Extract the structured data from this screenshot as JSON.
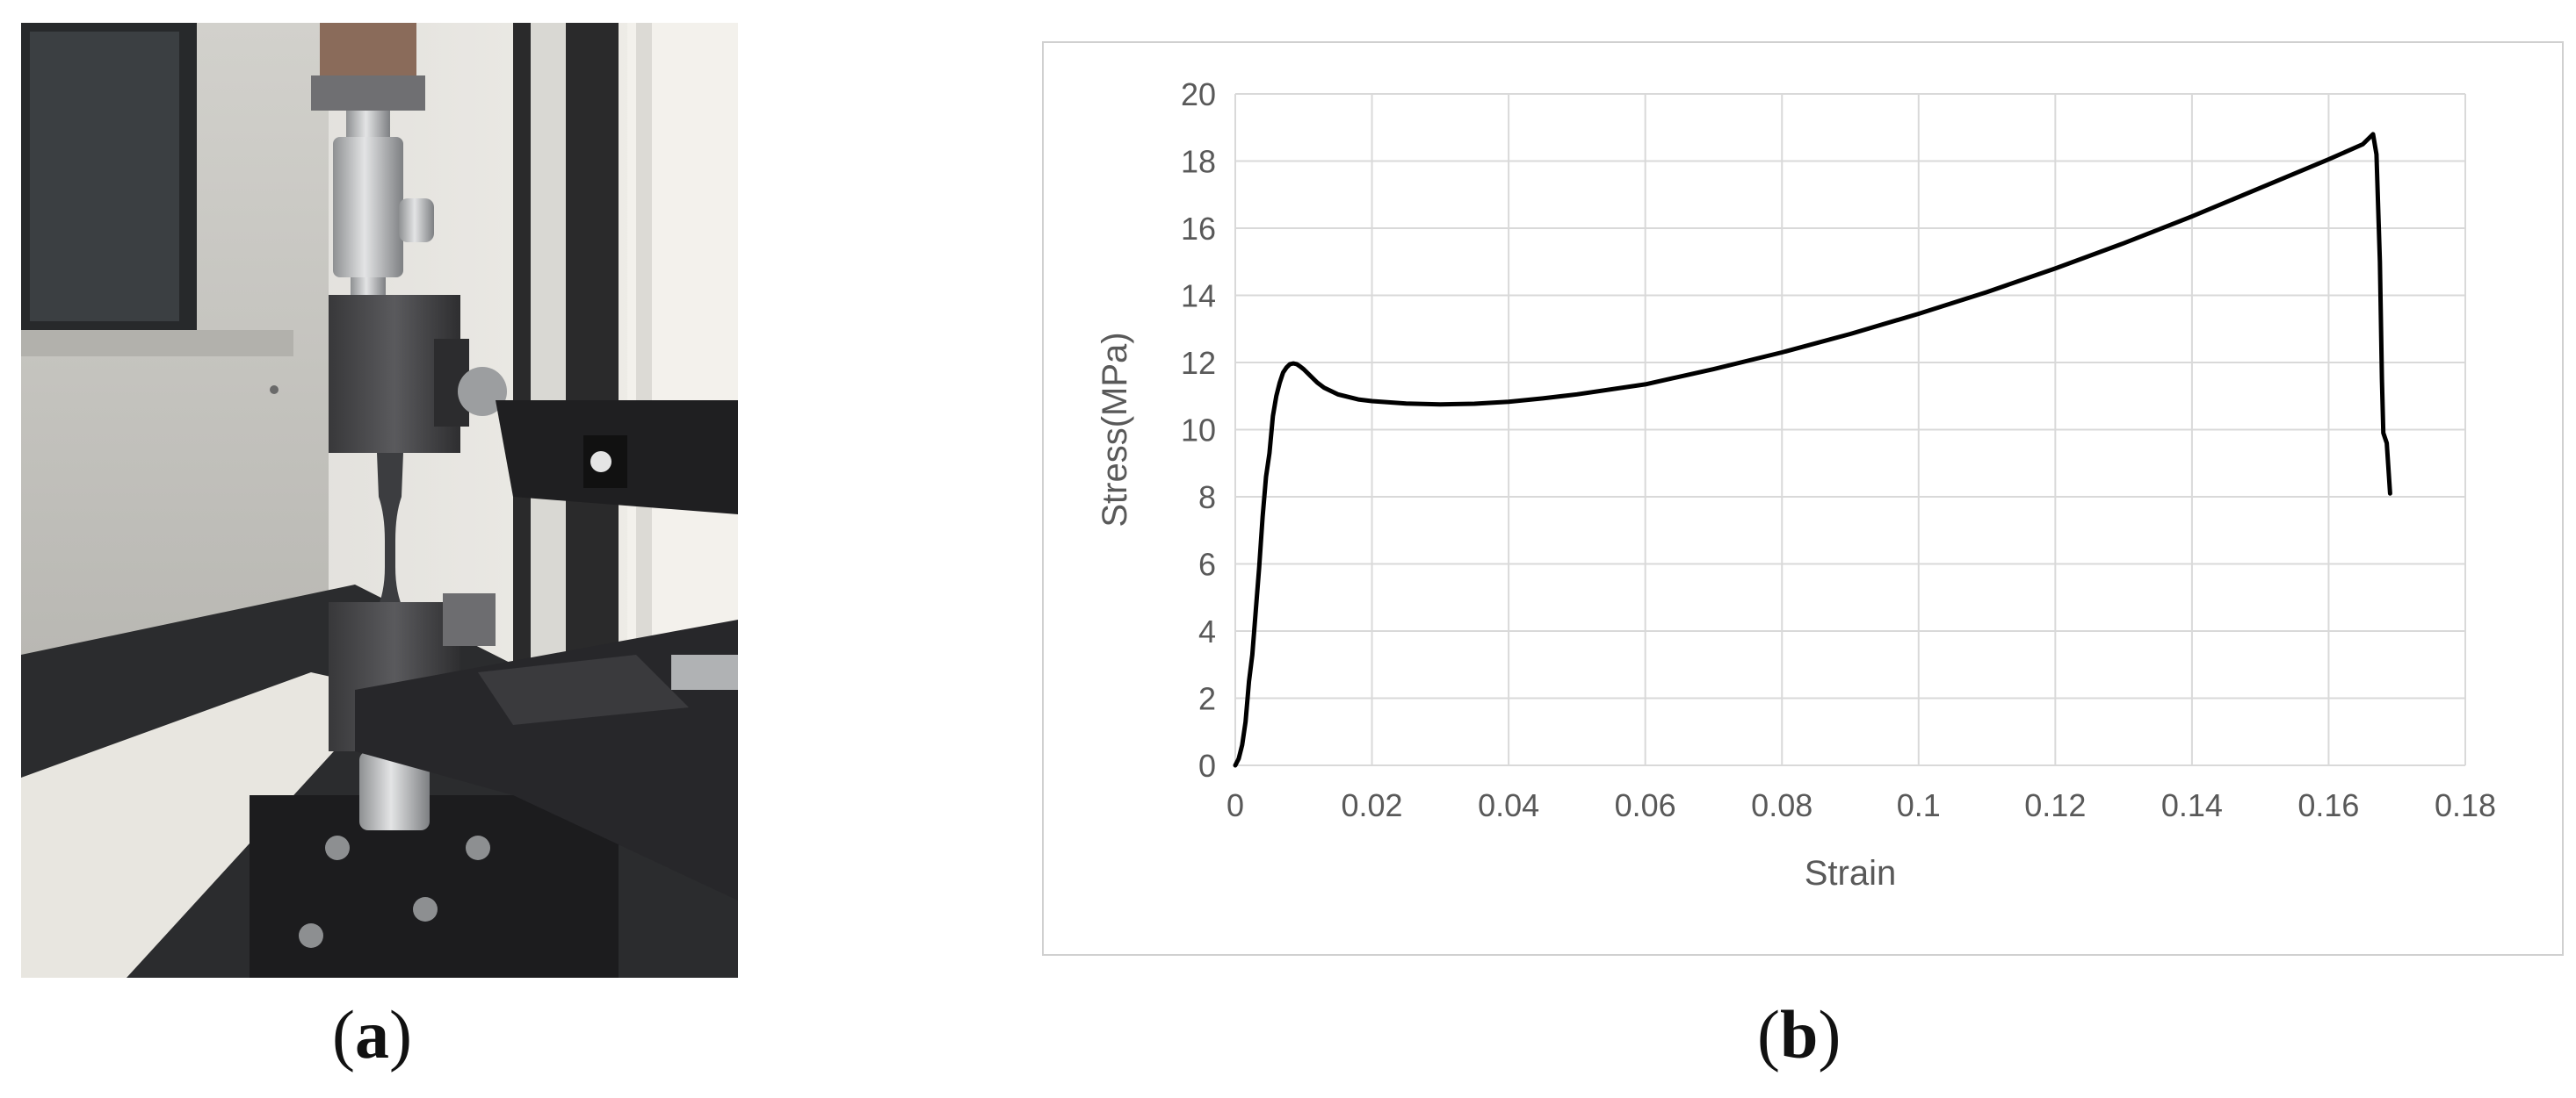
{
  "panels": {
    "a": {
      "label": "a"
    },
    "b": {
      "label": "b"
    }
  },
  "chart_data": {
    "type": "line",
    "xlabel": "Strain",
    "ylabel": "Stress(MPa)",
    "xlim": [
      0,
      0.18
    ],
    "ylim": [
      0,
      20
    ],
    "xticks": [
      0,
      0.02,
      0.04,
      0.06,
      0.08,
      0.1,
      0.12,
      0.14,
      0.16,
      0.18
    ],
    "xtick_labels": [
      "0",
      "0.02",
      "0.04",
      "0.06",
      "0.08",
      "0.1",
      "0.12",
      "0.14",
      "0.16",
      "0.18"
    ],
    "yticks": [
      0,
      2,
      4,
      6,
      8,
      10,
      12,
      14,
      16,
      18,
      20
    ],
    "ytick_labels": [
      "0",
      "2",
      "4",
      "6",
      "8",
      "10",
      "12",
      "14",
      "16",
      "18",
      "20"
    ],
    "grid": true,
    "line_color": "#000000",
    "series": [
      {
        "x": [
          0,
          0.0005,
          0.001,
          0.0015,
          0.002,
          0.0025,
          0.003,
          0.0035,
          0.004,
          0.0045,
          0.005,
          0.0055,
          0.006,
          0.0065,
          0.007,
          0.0075,
          0.008,
          0.0085,
          0.009,
          0.0095,
          0.01,
          0.011,
          0.012,
          0.013,
          0.015,
          0.018,
          0.02,
          0.025,
          0.03,
          0.035,
          0.04,
          0.045,
          0.05,
          0.06,
          0.07,
          0.08,
          0.09,
          0.1,
          0.11,
          0.12,
          0.13,
          0.14,
          0.15,
          0.16,
          0.165,
          0.1665,
          0.167,
          0.1675,
          0.1678,
          0.168,
          0.1685,
          0.169
        ],
        "y": [
          0,
          0.2,
          0.6,
          1.3,
          2.5,
          3.3,
          4.6,
          5.9,
          7.4,
          8.6,
          9.3,
          10.4,
          11.0,
          11.4,
          11.7,
          11.85,
          11.95,
          11.97,
          11.95,
          11.88,
          11.8,
          11.6,
          11.4,
          11.25,
          11.05,
          10.9,
          10.85,
          10.78,
          10.75,
          10.77,
          10.83,
          10.93,
          11.05,
          11.35,
          11.8,
          12.3,
          12.85,
          13.45,
          14.1,
          14.8,
          15.55,
          16.35,
          17.2,
          18.05,
          18.5,
          18.8,
          18.2,
          15.0,
          11.5,
          9.9,
          9.6,
          8.1
        ]
      }
    ]
  },
  "photo": {
    "colors": {
      "wall": "#e9e7e2",
      "cabinet": "#c9c8c3",
      "grip": "#4a4a4c",
      "metal": "#b9bbbd",
      "dark": "#1f1f21",
      "specimen": "#3c3d40"
    }
  }
}
